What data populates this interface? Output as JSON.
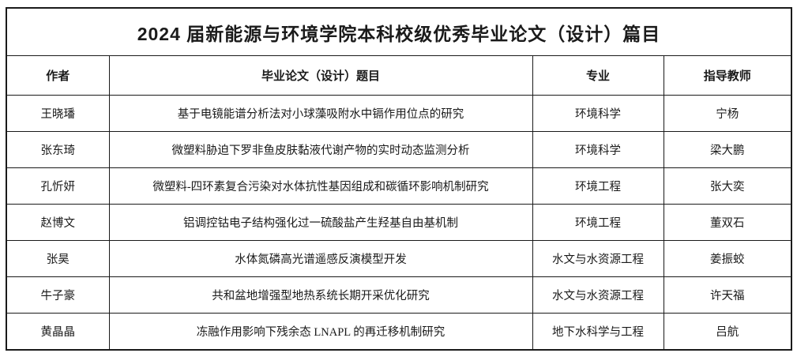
{
  "table": {
    "title": "2024 届新能源与环境学院本科校级优秀毕业论文（设计）篇目",
    "columns": {
      "author": "作者",
      "thesis": "毕业论文（设计）题目",
      "major": "专业",
      "advisor": "指导教师"
    },
    "rows": [
      {
        "author": "王晓璠",
        "thesis": "基于电镜能谱分析法对小球藻吸附水中镉作用位点的研究",
        "major": "环境科学",
        "advisor": "宁杨"
      },
      {
        "author": "张东琦",
        "thesis": "微塑料胁迫下罗非鱼皮肤黏液代谢产物的实时动态监测分析",
        "major": "环境科学",
        "advisor": "梁大鹏"
      },
      {
        "author": "孔忻妍",
        "thesis": "微塑料-四环素复合污染对水体抗性基因组成和碳循环影响机制研究",
        "major": "环境工程",
        "advisor": "张大奕"
      },
      {
        "author": "赵博文",
        "thesis": "铝调控钴电子结构强化过一硫酸盐产生羟基自由基机制",
        "major": "环境工程",
        "advisor": "董双石"
      },
      {
        "author": "张昊",
        "thesis": "水体氮磷高光谱遥感反演模型开发",
        "major": "水文与水资源工程",
        "advisor": "姜振蛟"
      },
      {
        "author": "牛子豪",
        "thesis": "共和盆地增强型地热系统长期开采优化研究",
        "major": "水文与水资源工程",
        "advisor": "许天福"
      },
      {
        "author": "黄晶晶",
        "thesis": "冻融作用影响下残余态 LNAPL 的再迁移机制研究",
        "major": "地下水科学与工程",
        "advisor": "吕航"
      }
    ],
    "colors": {
      "border": "#1a1a1a",
      "background": "#ffffff",
      "text": "#1a1a1a"
    }
  }
}
